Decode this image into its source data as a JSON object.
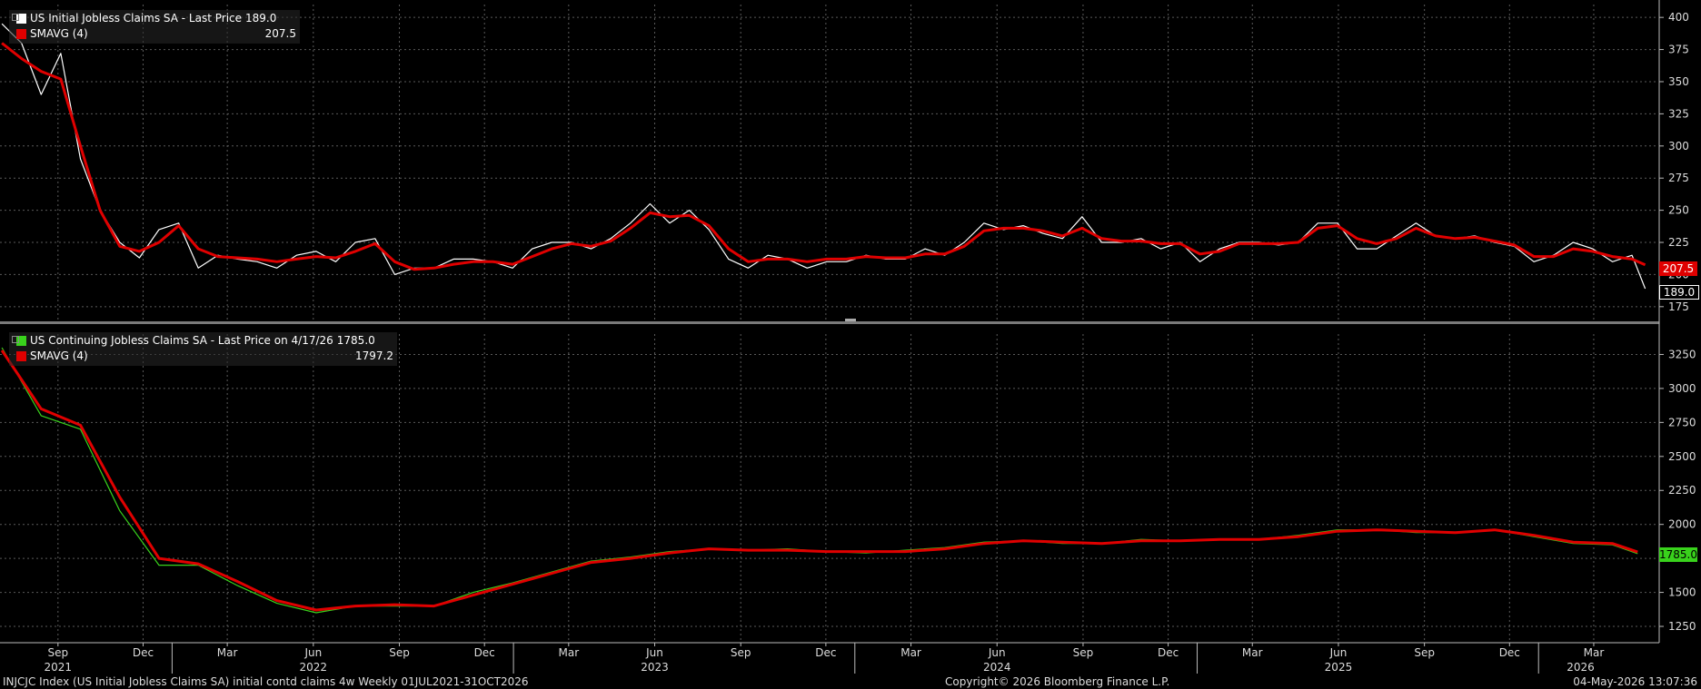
{
  "colors": {
    "background": "#000000",
    "grid": "#5a5a5a",
    "initial_claims": "#ffffff",
    "continuing_claims": "#39d21c",
    "smavg": "#e00000"
  },
  "legend_top": {
    "series_label": "US Initial Jobless Claims SA - Last Price",
    "series_value": "189.0",
    "ma_label": "SMAVG (4)",
    "ma_value": "207.5"
  },
  "legend_bottom": {
    "series_label": "US Continuing Jobless Claims SA - Last Price on 4/17/26",
    "series_value": "1785.0",
    "ma_label": "SMAVG (4)",
    "ma_value": "1797.2"
  },
  "tags": {
    "top_ma": "207.5",
    "top_last": "189.0",
    "bottom_last": "1785.0"
  },
  "footer": {
    "left": "INJCJC Index (US Initial Jobless Claims SA) initial contd claims 4w Weekly 01JUL2021-31OCT2026",
    "center": "Copyright© 2026 Bloomberg Finance L.P.",
    "right": "04-May-2026 13:07:36"
  },
  "chart_data": [
    {
      "type": "line",
      "series": [
        {
          "name": "US Initial Jobless Claims SA",
          "x": [
            "2021-07-03",
            "2021-07-24",
            "2021-08-14",
            "2021-09-04",
            "2021-09-25",
            "2021-10-16",
            "2021-11-06",
            "2021-11-27",
            "2021-12-18",
            "2022-01-08",
            "2022-01-29",
            "2022-02-19",
            "2022-03-12",
            "2022-04-02",
            "2022-04-23",
            "2022-05-14",
            "2022-06-04",
            "2022-06-25",
            "2022-07-16",
            "2022-08-06",
            "2022-08-27",
            "2022-09-17",
            "2022-10-08",
            "2022-10-29",
            "2022-11-19",
            "2022-12-10",
            "2022-12-31",
            "2023-01-21",
            "2023-02-11",
            "2023-03-04",
            "2023-03-25",
            "2023-04-15",
            "2023-05-06",
            "2023-05-27",
            "2023-06-17",
            "2023-07-08",
            "2023-07-29",
            "2023-08-19",
            "2023-09-09",
            "2023-09-30",
            "2023-10-21",
            "2023-11-11",
            "2023-12-02",
            "2023-12-23",
            "2024-01-13",
            "2024-02-03",
            "2024-02-24",
            "2024-03-16",
            "2024-04-06",
            "2024-04-27",
            "2024-05-18",
            "2024-06-08",
            "2024-06-29",
            "2024-07-20",
            "2024-08-10",
            "2024-08-31",
            "2024-09-21",
            "2024-10-12",
            "2024-11-02",
            "2024-11-23",
            "2024-12-14",
            "2025-01-04",
            "2025-01-25",
            "2025-02-15",
            "2025-03-08",
            "2025-03-29",
            "2025-04-19",
            "2025-05-10",
            "2025-05-31",
            "2025-06-21",
            "2025-07-12",
            "2025-08-02",
            "2025-08-23",
            "2025-09-13",
            "2025-10-04",
            "2025-10-25",
            "2025-11-15",
            "2025-12-06",
            "2025-12-27",
            "2026-01-17",
            "2026-02-07",
            "2026-02-28",
            "2026-03-21",
            "2026-04-11",
            "2026-04-25"
          ],
          "values": [
            395,
            380,
            340,
            372,
            290,
            250,
            225,
            213,
            235,
            240,
            205,
            215,
            212,
            210,
            205,
            215,
            218,
            210,
            225,
            228,
            200,
            205,
            205,
            212,
            212,
            210,
            205,
            220,
            225,
            225,
            220,
            228,
            240,
            255,
            240,
            250,
            235,
            212,
            205,
            215,
            212,
            205,
            210,
            210,
            215,
            212,
            212,
            220,
            215,
            225,
            240,
            235,
            238,
            232,
            228,
            245,
            225,
            225,
            228,
            220,
            225,
            210,
            220,
            225,
            225,
            223,
            225,
            240,
            240,
            220,
            220,
            230,
            240,
            230,
            228,
            230,
            225,
            222,
            210,
            215,
            225,
            220,
            210,
            215,
            189
          ]
        },
        {
          "name": "SMAVG (4)",
          "x": [
            "2021-07-03",
            "2021-07-24",
            "2021-08-14",
            "2021-09-04",
            "2021-09-25",
            "2021-10-16",
            "2021-11-06",
            "2021-11-27",
            "2021-12-18",
            "2022-01-08",
            "2022-01-29",
            "2022-02-19",
            "2022-03-12",
            "2022-04-02",
            "2022-04-23",
            "2022-05-14",
            "2022-06-04",
            "2022-06-25",
            "2022-07-16",
            "2022-08-06",
            "2022-08-27",
            "2022-09-17",
            "2022-10-08",
            "2022-10-29",
            "2022-11-19",
            "2022-12-10",
            "2022-12-31",
            "2023-01-21",
            "2023-02-11",
            "2023-03-04",
            "2023-03-25",
            "2023-04-15",
            "2023-05-06",
            "2023-05-27",
            "2023-06-17",
            "2023-07-08",
            "2023-07-29",
            "2023-08-19",
            "2023-09-09",
            "2023-09-30",
            "2023-10-21",
            "2023-11-11",
            "2023-12-02",
            "2023-12-23",
            "2024-01-13",
            "2024-02-03",
            "2024-02-24",
            "2024-03-16",
            "2024-04-06",
            "2024-04-27",
            "2024-05-18",
            "2024-06-08",
            "2024-06-29",
            "2024-07-20",
            "2024-08-10",
            "2024-08-31",
            "2024-09-21",
            "2024-10-12",
            "2024-11-02",
            "2024-11-23",
            "2024-12-14",
            "2025-01-04",
            "2025-01-25",
            "2025-02-15",
            "2025-03-08",
            "2025-03-29",
            "2025-04-19",
            "2025-05-10",
            "2025-05-31",
            "2025-06-21",
            "2025-07-12",
            "2025-08-02",
            "2025-08-23",
            "2025-09-13",
            "2025-10-04",
            "2025-10-25",
            "2025-11-15",
            "2025-12-06",
            "2025-12-27",
            "2026-01-17",
            "2026-02-07",
            "2026-02-28",
            "2026-03-21",
            "2026-04-11",
            "2026-04-25"
          ],
          "values": [
            380,
            368,
            358,
            352,
            300,
            250,
            222,
            218,
            225,
            238,
            220,
            214,
            213,
            212,
            210,
            212,
            214,
            213,
            218,
            224,
            210,
            204,
            205,
            208,
            210,
            210,
            208,
            214,
            220,
            224,
            222,
            226,
            236,
            248,
            245,
            246,
            238,
            220,
            210,
            212,
            212,
            210,
            212,
            212,
            214,
            213,
            213,
            216,
            216,
            222,
            234,
            236,
            236,
            234,
            230,
            236,
            228,
            226,
            226,
            224,
            224,
            216,
            218,
            224,
            224,
            224,
            225,
            236,
            238,
            228,
            224,
            228,
            236,
            230,
            228,
            229,
            226,
            223,
            214,
            214,
            220,
            218,
            214,
            212,
            207.5
          ]
        }
      ],
      "ylim": [
        165,
        410
      ],
      "yticks": [
        175,
        200,
        225,
        250,
        275,
        300,
        325,
        350,
        375,
        400
      ],
      "grid": true,
      "legend": "top-left"
    },
    {
      "type": "line",
      "series": [
        {
          "name": "US Continuing Jobless Claims SA",
          "x": [
            "2021-07-03",
            "2021-08-14",
            "2021-09-25",
            "2021-11-06",
            "2021-12-18",
            "2022-01-29",
            "2022-03-12",
            "2022-04-23",
            "2022-06-04",
            "2022-07-16",
            "2022-08-27",
            "2022-10-08",
            "2022-11-19",
            "2022-12-31",
            "2023-02-11",
            "2023-03-25",
            "2023-05-06",
            "2023-06-17",
            "2023-07-29",
            "2023-09-09",
            "2023-10-21",
            "2023-12-02",
            "2024-01-13",
            "2024-02-24",
            "2024-04-06",
            "2024-05-18",
            "2024-06-29",
            "2024-08-10",
            "2024-09-21",
            "2024-11-02",
            "2024-12-14",
            "2025-01-25",
            "2025-03-08",
            "2025-04-19",
            "2025-05-31",
            "2025-07-12",
            "2025-08-23",
            "2025-10-04",
            "2025-11-15",
            "2025-12-27",
            "2026-02-07",
            "2026-03-21",
            "2026-04-17"
          ],
          "values": [
            3300,
            2800,
            2700,
            2100,
            1700,
            1700,
            1550,
            1420,
            1350,
            1400,
            1400,
            1400,
            1500,
            1570,
            1650,
            1730,
            1760,
            1800,
            1820,
            1810,
            1820,
            1800,
            1790,
            1810,
            1830,
            1870,
            1880,
            1860,
            1860,
            1890,
            1880,
            1890,
            1890,
            1920,
            1960,
            1960,
            1940,
            1940,
            1960,
            1910,
            1860,
            1850,
            1785
          ]
        },
        {
          "name": "SMAVG (4)",
          "x": [
            "2021-07-03",
            "2021-08-14",
            "2021-09-25",
            "2021-11-06",
            "2021-12-18",
            "2022-01-29",
            "2022-03-12",
            "2022-04-23",
            "2022-06-04",
            "2022-07-16",
            "2022-08-27",
            "2022-10-08",
            "2022-11-19",
            "2022-12-31",
            "2023-02-11",
            "2023-03-25",
            "2023-05-06",
            "2023-06-17",
            "2023-07-29",
            "2023-09-09",
            "2023-10-21",
            "2023-12-02",
            "2024-01-13",
            "2024-02-24",
            "2024-04-06",
            "2024-05-18",
            "2024-06-29",
            "2024-08-10",
            "2024-09-21",
            "2024-11-02",
            "2024-12-14",
            "2025-01-25",
            "2025-03-08",
            "2025-04-19",
            "2025-05-31",
            "2025-07-12",
            "2025-08-23",
            "2025-10-04",
            "2025-11-15",
            "2025-12-27",
            "2026-02-07",
            "2026-03-21",
            "2026-04-17"
          ],
          "values": [
            3280,
            2850,
            2730,
            2200,
            1750,
            1710,
            1580,
            1440,
            1370,
            1400,
            1410,
            1400,
            1480,
            1560,
            1640,
            1720,
            1750,
            1790,
            1820,
            1810,
            1810,
            1800,
            1800,
            1800,
            1820,
            1860,
            1880,
            1870,
            1860,
            1880,
            1880,
            1890,
            1890,
            1910,
            1950,
            1960,
            1950,
            1940,
            1960,
            1920,
            1870,
            1860,
            1797.2
          ]
        }
      ],
      "ylim": [
        1150,
        3400
      ],
      "yticks": [
        1250,
        1500,
        1750,
        2000,
        2250,
        2500,
        2750,
        3000,
        3250
      ],
      "grid": true,
      "legend": "top-left"
    }
  ],
  "x_axis": {
    "start": "2021-07-01",
    "end": "2026-05-10",
    "month_ticks": [
      {
        "date": "2021-09-01",
        "label": "Sep"
      },
      {
        "date": "2021-12-01",
        "label": "Dec"
      },
      {
        "date": "2022-03-01",
        "label": "Mar"
      },
      {
        "date": "2022-06-01",
        "label": "Jun"
      },
      {
        "date": "2022-09-01",
        "label": "Sep"
      },
      {
        "date": "2022-12-01",
        "label": "Dec"
      },
      {
        "date": "2023-03-01",
        "label": "Mar"
      },
      {
        "date": "2023-06-01",
        "label": "Jun"
      },
      {
        "date": "2023-09-01",
        "label": "Sep"
      },
      {
        "date": "2023-12-01",
        "label": "Dec"
      },
      {
        "date": "2024-03-01",
        "label": "Mar"
      },
      {
        "date": "2024-06-01",
        "label": "Jun"
      },
      {
        "date": "2024-09-01",
        "label": "Sep"
      },
      {
        "date": "2024-12-01",
        "label": "Dec"
      },
      {
        "date": "2025-03-01",
        "label": "Mar"
      },
      {
        "date": "2025-06-01",
        "label": "Jun"
      },
      {
        "date": "2025-09-01",
        "label": "Sep"
      },
      {
        "date": "2025-12-01",
        "label": "Dec"
      },
      {
        "date": "2026-03-01",
        "label": "Mar"
      }
    ],
    "year_labels": [
      {
        "date": "2021-09-01",
        "label": "2021"
      },
      {
        "date": "2022-06-01",
        "label": "2022"
      },
      {
        "date": "2023-06-01",
        "label": "2023"
      },
      {
        "date": "2024-06-01",
        "label": "2024"
      },
      {
        "date": "2025-06-01",
        "label": "2025"
      },
      {
        "date": "2026-02-15",
        "label": "2026"
      }
    ],
    "year_boundaries": [
      "2022-01-01",
      "2023-01-01",
      "2024-01-01",
      "2025-01-01",
      "2026-01-01"
    ]
  }
}
